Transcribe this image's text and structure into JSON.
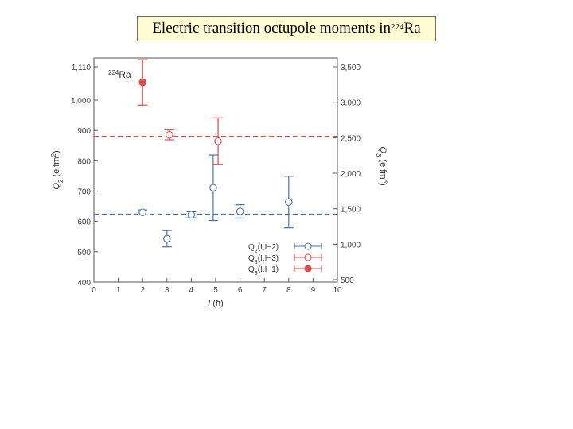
{
  "slide": {
    "title_prefix": "Electric transition octupole moments in ",
    "title_mass": "224",
    "title_element": "Ra"
  },
  "chart_data": {
    "type": "scatter",
    "isotope": {
      "mass": "224",
      "element": "Ra"
    },
    "xlabel": "I (ħ)",
    "ylabel_left": "Q2 (e fm2)",
    "ylabel_right": "Q3 (e fm3)",
    "xlim": [
      0,
      10
    ],
    "ylim_left": [
      400,
      1110
    ],
    "ylim_right": [
      500,
      3500
    ],
    "x_ticks": [
      "0",
      "1",
      "2",
      "3",
      "4",
      "5",
      "6",
      "7",
      "8",
      "9",
      "10"
    ],
    "y_left_ticks": [
      "400",
      "500",
      "600",
      "700",
      "800",
      "900",
      "1,000",
      "1,110"
    ],
    "y_right_ticks": [
      "500",
      "1,000",
      "1,500",
      "2,000",
      "2,500",
      "3,000",
      "3,500"
    ],
    "legend_position": "bottom-right",
    "series": [
      {
        "name": "Q2(I,I−2)",
        "color": "#4a6fb0",
        "marker": "open-circle",
        "axis": "left",
        "points": [
          {
            "x": 2,
            "y": 630,
            "err": 8
          },
          {
            "x": 3,
            "y": 543,
            "err": 27
          },
          {
            "x": 4,
            "y": 622,
            "err": 10
          },
          {
            "x": 4.9,
            "y": 711,
            "err": 108
          },
          {
            "x": 6,
            "y": 633,
            "err": 22
          },
          {
            "x": 8,
            "y": 664,
            "err": 85
          }
        ],
        "reference": 624
      },
      {
        "name": "Q3(I,I−3)",
        "color": "#e0484a",
        "marker": "open-circle",
        "axis": "right",
        "points": [
          {
            "x": 3.1,
            "y": 2540,
            "err": 70
          },
          {
            "x": 5.1,
            "y": 2450,
            "err": 330
          }
        ],
        "reference": 2520
      },
      {
        "name": "Q3(I,I−1)",
        "color": "#e0484a",
        "marker": "filled-circle",
        "axis": "right",
        "points": [
          {
            "x": 2,
            "y": 3280,
            "err": 320
          }
        ]
      }
    ]
  }
}
